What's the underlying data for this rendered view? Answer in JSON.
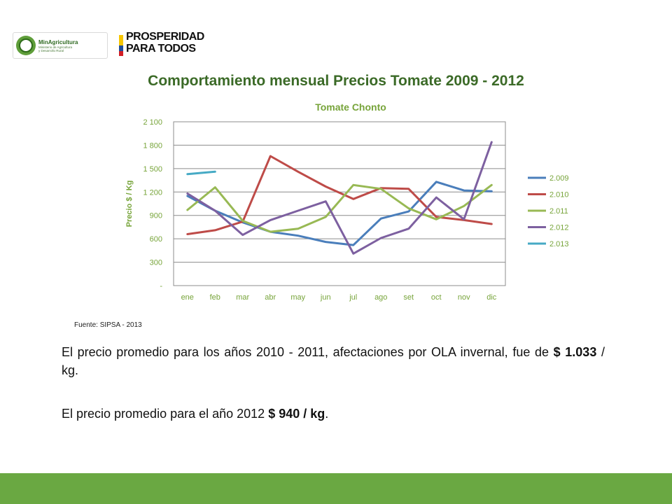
{
  "logos": {
    "ministry_name": "MinAgricultura",
    "ministry_sub1": "Ministerio de Agricultura",
    "ministry_sub2": "y Desarrollo Rural",
    "prosperidad_line1": "PROSPERIDAD",
    "prosperidad_line2": "PARA TODOS"
  },
  "slide_title": "Comportamiento mensual Precios Tomate 2009 - 2012",
  "source": "Fuente: SIPSA - 2013",
  "paragraph1": {
    "text_a": "El precio promedio para los años 2010 - 2011, afectaciones por OLA invernal, fue de ",
    "bold": "$ 1.033",
    "text_b": " / kg."
  },
  "paragraph2": {
    "text_a": "El precio promedio  para el año  2012  ",
    "bold": "$ 940 / kg",
    "text_b": "."
  },
  "colors": {
    "title": "#3b6a27",
    "axis_text": "#77a43a",
    "footer": "#6aa842"
  },
  "chart_data": {
    "type": "line",
    "title": "Tomate Chonto",
    "ylabel": "Precio $ / Kg",
    "xlabel": "",
    "categories": [
      "ene",
      "feb",
      "mar",
      "abr",
      "may",
      "jun",
      "jul",
      "ago",
      "set",
      "oct",
      "nov",
      "dic"
    ],
    "ylim": [
      0,
      2100
    ],
    "yticks": [
      0,
      300,
      600,
      900,
      1200,
      1500,
      1800,
      2100
    ],
    "ytick_labels": [
      "-",
      "300",
      "600",
      "900",
      "1 200",
      "1 500",
      "1 800",
      "2 100"
    ],
    "grid": true,
    "legend_position": "right",
    "series": [
      {
        "name": "2.009",
        "color": "#4a7ebb",
        "values": [
          1150,
          960,
          810,
          690,
          640,
          560,
          520,
          860,
          950,
          1330,
          1220,
          1210
        ]
      },
      {
        "name": "2.010",
        "color": "#be4b48",
        "values": [
          660,
          710,
          820,
          1660,
          1460,
          1270,
          1110,
          1250,
          1240,
          880,
          840,
          790
        ]
      },
      {
        "name": "2.011",
        "color": "#98b954",
        "values": [
          970,
          1260,
          830,
          690,
          730,
          880,
          1290,
          1240,
          990,
          850,
          1020,
          1290
        ]
      },
      {
        "name": "2.012",
        "color": "#7d60a0",
        "values": [
          1180,
          960,
          650,
          840,
          960,
          1080,
          410,
          610,
          730,
          1130,
          850,
          1840
        ]
      },
      {
        "name": "2.013",
        "color": "#46aac5",
        "values": [
          1430,
          1460,
          null,
          null,
          null,
          null,
          null,
          null,
          null,
          null,
          null,
          null
        ]
      }
    ]
  }
}
